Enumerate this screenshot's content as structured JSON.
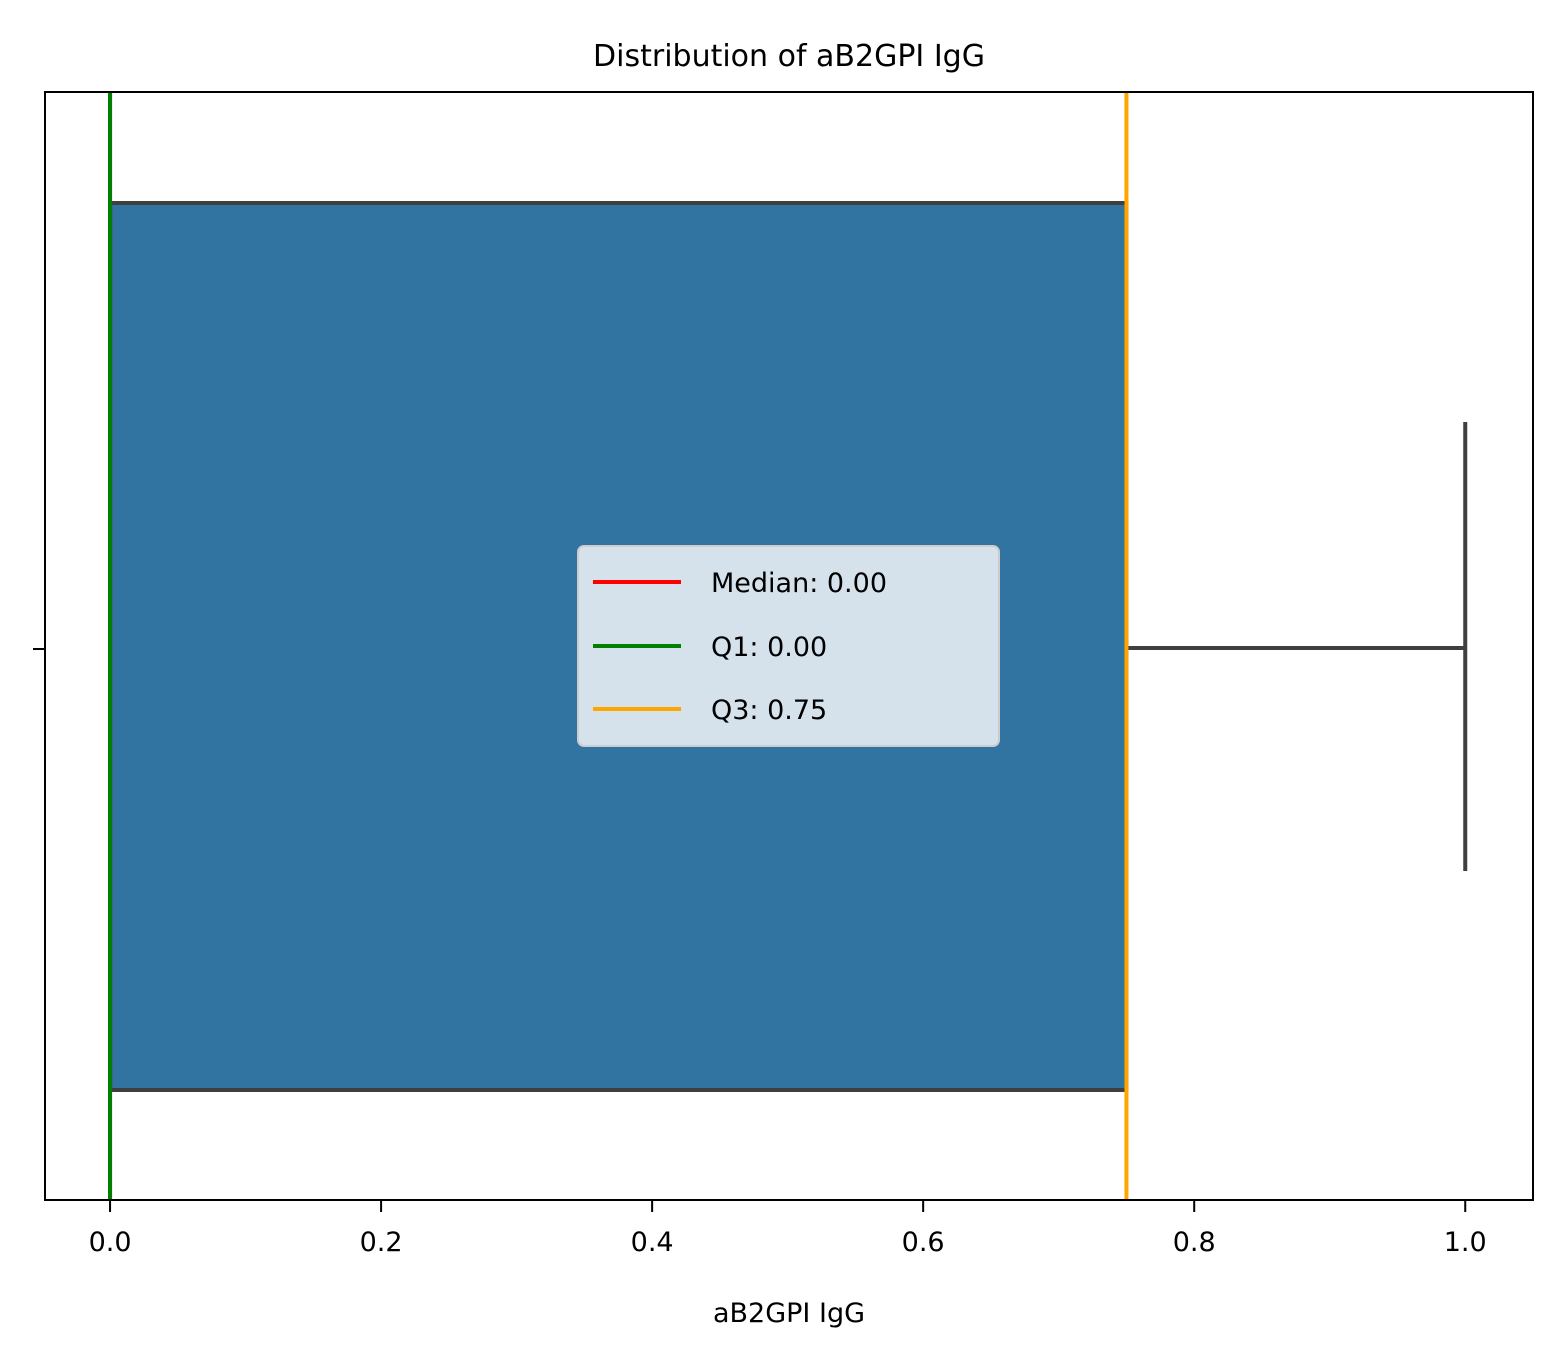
{
  "chart_data": {
    "type": "box",
    "title": "Distribution of aB2GPI IgG",
    "xlabel": "aB2GPI IgG",
    "ylabel": "",
    "orientation": "horizontal",
    "xlim": [
      -0.048,
      1.05
    ],
    "xticks": [
      0.0,
      0.2,
      0.4,
      0.6,
      0.8,
      1.0
    ],
    "xtick_labels": [
      "0.0",
      "0.2",
      "0.4",
      "0.6",
      "0.8",
      "1.0"
    ],
    "grid": false,
    "box": {
      "min": 0.0,
      "q1": 0.0,
      "median": 0.0,
      "q3": 0.75,
      "max": 1.0,
      "fill_color": "#3274a1",
      "edge_color": "#3f3f3f"
    },
    "reference_lines": [
      {
        "label": "Median: 0.00",
        "value": 0.0,
        "color": "#ff0000"
      },
      {
        "label": "Q1: 0.00",
        "value": 0.0,
        "color": "#008000"
      },
      {
        "label": "Q3: 0.75",
        "value": 0.75,
        "color": "#ffa500"
      }
    ],
    "legend_position": "center"
  }
}
